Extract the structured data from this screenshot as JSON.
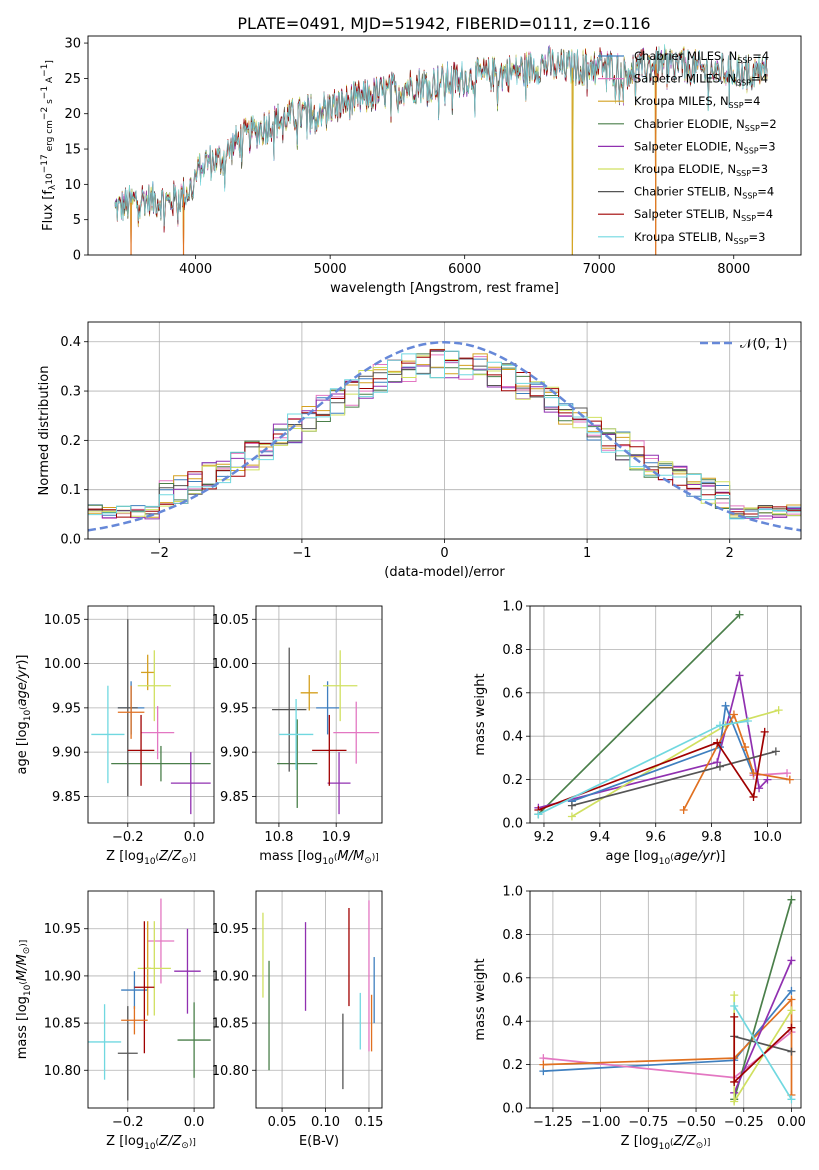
{
  "title": "PLATE=0491, MJD=51942, FIBERID=0111, z=0.116",
  "colors": {
    "chabrier_miles": "#3f7fbf",
    "salpeter_miles": "#e377c2",
    "kroupa_miles": "#d4a020",
    "chabrier_elodie": "#4a7f4a",
    "salpeter_elodie": "#9030b0",
    "kroupa_elodie": "#d0e060",
    "chabrier_stelib": "#555555",
    "salpeter_stelib": "#a00000",
    "kroupa_stelib": "#70d8e0",
    "orange": "#e07020",
    "blue": "#5577dd",
    "normal_curve": "#6688d8",
    "grid": "#b0b0b0"
  },
  "chart_data": [
    {
      "id": "spectrum",
      "type": "line",
      "title": "PLATE=0491, MJD=51942, FIBERID=0111, z=0.116",
      "xlabel": "wavelength [Angstrom, rest frame]",
      "ylabel": "Flux [f_λ 10^-17 erg cm^-2 s^-1 A^-1]",
      "xlim": [
        3200,
        8500
      ],
      "ylim": [
        0,
        31
      ],
      "xticks": [
        "4000",
        "5000",
        "6000",
        "7000",
        "8000"
      ],
      "yticks": [
        "0",
        "5",
        "10",
        "15",
        "20",
        "25",
        "30"
      ],
      "legend_position": "upper-right",
      "series": [
        {
          "name": "Chabrier MILES, N_SSP=4"
        },
        {
          "name": "Salpeter MILES, N_SSP=4"
        },
        {
          "name": "Kroupa MILES, N_SSP=4"
        },
        {
          "name": "Chabrier ELODIE, N_SSP=2"
        },
        {
          "name": "Salpeter ELODIE, N_SSP=3"
        },
        {
          "name": "Kroupa ELODIE, N_SSP=3"
        },
        {
          "name": "Chabrier STELIB, N_SSP=4"
        },
        {
          "name": "Salpeter STELIB, N_SSP=4"
        },
        {
          "name": "Kroupa STELIB, N_SSP=3"
        }
      ],
      "continuum_points": [
        [
          3400,
          6.5
        ],
        [
          3600,
          8
        ],
        [
          3800,
          7.5
        ],
        [
          3950,
          9
        ],
        [
          4050,
          13
        ],
        [
          4200,
          13.5
        ],
        [
          4300,
          16
        ],
        [
          4400,
          17
        ],
        [
          4600,
          19
        ],
        [
          4800,
          20
        ],
        [
          5000,
          21
        ],
        [
          5200,
          22
        ],
        [
          5400,
          23
        ],
        [
          5600,
          24
        ],
        [
          5800,
          24.5
        ],
        [
          6000,
          25
        ],
        [
          6200,
          25.5
        ],
        [
          6400,
          26
        ],
        [
          6600,
          27
        ],
        [
          6800,
          26.5
        ],
        [
          7000,
          27
        ],
        [
          7200,
          26
        ],
        [
          7400,
          27
        ],
        [
          7600,
          27
        ],
        [
          7800,
          26
        ],
        [
          8000,
          26
        ],
        [
          8250,
          26
        ]
      ],
      "drops": [
        3520,
        3910,
        6800,
        7420
      ]
    },
    {
      "id": "residuals",
      "type": "histogram",
      "xlabel": "(data-model)/error",
      "ylabel": "Normed distribution",
      "xlim": [
        -2.5,
        2.5
      ],
      "ylim": [
        0,
        0.44
      ],
      "xticks": [
        "−2",
        "−1",
        "0",
        "1",
        "2"
      ],
      "yticks": [
        "0.0",
        "0.1",
        "0.2",
        "0.3",
        "0.4"
      ],
      "legend": "𝒩(0, 1)",
      "legend_position": "upper-right",
      "bins": 50,
      "n_series": 9
    },
    {
      "id": "age_vs_Z",
      "type": "errorbar",
      "xlabel": "Z [log10(Z/Z⊙)]",
      "ylabel": "age [log10(age/yr)]",
      "xlim": [
        -0.32,
        0.06
      ],
      "ylim": [
        9.82,
        10.065
      ],
      "xticks": [
        "−0.2",
        "0.0"
      ],
      "yticks": [
        "9.85",
        "9.90",
        "9.95",
        "10.00",
        "10.05"
      ],
      "points": [
        {
          "s": "chabrier_miles",
          "x": -0.19,
          "xerr": 0.04,
          "y": 9.95,
          "yerr": 0.03
        },
        {
          "s": "salpeter_miles",
          "x": -0.11,
          "xerr": 0.05,
          "y": 9.922,
          "yerr": 0.03
        },
        {
          "s": "kroupa_miles",
          "x": -0.14,
          "xerr": 0.02,
          "y": 9.99,
          "yerr": 0.02
        },
        {
          "s": "chabrier_elodie",
          "x": -0.1,
          "xerr": 0.15,
          "y": 9.887,
          "yerr": 0.02
        },
        {
          "s": "salpeter_elodie",
          "x": -0.01,
          "xerr": 0.06,
          "y": 9.865,
          "yerr": 0.035
        },
        {
          "s": "kroupa_elodie",
          "x": -0.12,
          "xerr": 0.05,
          "y": 9.975,
          "yerr": 0.04
        },
        {
          "s": "chabrier_stelib",
          "x": -0.2,
          "xerr": 0.03,
          "y": 9.95,
          "yerr": 0.1
        },
        {
          "s": "salpeter_stelib",
          "x": -0.16,
          "xerr": 0.04,
          "y": 9.902,
          "yerr": 0.04
        },
        {
          "s": "kroupa_stelib",
          "x": -0.26,
          "xerr": 0.05,
          "y": 9.92,
          "yerr": 0.055
        },
        {
          "s": "orange",
          "x": -0.19,
          "xerr": 0.04,
          "y": 9.945,
          "yerr": 0.03
        }
      ]
    },
    {
      "id": "age_vs_mass",
      "type": "errorbar",
      "xlabel": "mass [log10(M/M⊙)]",
      "ylabel": "",
      "xlim": [
        10.76,
        10.98
      ],
      "ylim": [
        9.82,
        10.065
      ],
      "xticks": [
        "10.8",
        "10.9"
      ],
      "yticks": [
        "9.85",
        "9.90",
        "9.95",
        "10.00",
        "10.05"
      ],
      "points": [
        {
          "s": "chabrier_miles",
          "x": 10.885,
          "xerr": 0.02,
          "y": 9.95,
          "yerr": 0.03
        },
        {
          "s": "salpeter_miles",
          "x": 10.935,
          "xerr": 0.04,
          "y": 9.922,
          "yerr": 0.035
        },
        {
          "s": "kroupa_miles",
          "x": 10.853,
          "xerr": 0.015,
          "y": 9.967,
          "yerr": 0.02
        },
        {
          "s": "chabrier_elodie",
          "x": 10.832,
          "xerr": 0.035,
          "y": 9.887,
          "yerr": 0.05
        },
        {
          "s": "salpeter_elodie",
          "x": 10.905,
          "xerr": 0.02,
          "y": 9.865,
          "yerr": 0.035
        },
        {
          "s": "kroupa_elodie",
          "x": 10.907,
          "xerr": 0.03,
          "y": 9.975,
          "yerr": 0.04
        },
        {
          "s": "chabrier_stelib",
          "x": 10.818,
          "xerr": 0.03,
          "y": 9.948,
          "yerr": 0.07
        },
        {
          "s": "salpeter_stelib",
          "x": 10.888,
          "xerr": 0.03,
          "y": 9.902,
          "yerr": 0.04
        },
        {
          "s": "kroupa_stelib",
          "x": 10.83,
          "xerr": 0.03,
          "y": 9.92,
          "yerr": 0.04
        }
      ]
    },
    {
      "id": "mass_weight_vs_age",
      "type": "line",
      "xlabel": "age [log10(age/yr)]",
      "ylabel": "mass weight",
      "xlim": [
        9.15,
        10.12
      ],
      "ylim": [
        0,
        1.0
      ],
      "xticks": [
        "9.2",
        "9.4",
        "9.6",
        "9.8",
        "10.0"
      ],
      "yticks": [
        "0.0",
        "0.2",
        "0.4",
        "0.6",
        "0.8",
        "1.0"
      ],
      "series": [
        {
          "s": "chabrier_elodie",
          "x": [
            9.18,
            9.9
          ],
          "y": [
            0.04,
            0.96
          ]
        },
        {
          "s": "salpeter_elodie",
          "x": [
            9.18,
            9.82,
            9.9,
            9.97,
            10.0
          ],
          "y": [
            0.07,
            0.28,
            0.68,
            0.16,
            0.2
          ]
        },
        {
          "s": "kroupa_elodie",
          "x": [
            9.3,
            9.85,
            10.04
          ],
          "y": [
            0.03,
            0.45,
            0.52
          ]
        },
        {
          "s": "chabrier_miles",
          "x": [
            9.3,
            9.83,
            9.85,
            9.95
          ],
          "y": [
            0.1,
            0.35,
            0.54,
            0.22
          ]
        },
        {
          "s": "salpeter_miles",
          "x": [
            9.95,
            10.07
          ],
          "y": [
            0.22,
            0.23
          ]
        },
        {
          "s": "orange",
          "x": [
            9.7,
            9.88,
            9.92,
            9.95,
            10.08
          ],
          "y": [
            0.06,
            0.5,
            0.35,
            0.23,
            0.2
          ]
        },
        {
          "s": "chabrier_stelib",
          "x": [
            9.3,
            9.83,
            10.03
          ],
          "y": [
            0.08,
            0.26,
            0.33
          ]
        },
        {
          "s": "salpeter_stelib",
          "x": [
            9.18,
            9.82,
            9.95,
            9.99
          ],
          "y": [
            0.06,
            0.37,
            0.12,
            0.42
          ]
        },
        {
          "s": "kroupa_stelib",
          "x": [
            9.18,
            9.83,
            9.93
          ],
          "y": [
            0.04,
            0.45,
            0.47
          ]
        }
      ]
    },
    {
      "id": "mass_vs_Z",
      "type": "errorbar",
      "xlabel": "Z [log10(Z/Z⊙)]",
      "ylabel": "mass [log10(M/M⊙)]",
      "xlim": [
        -0.32,
        0.06
      ],
      "ylim": [
        10.76,
        10.99
      ],
      "xticks": [
        "−0.2",
        "0.0"
      ],
      "yticks": [
        "10.80",
        "10.85",
        "10.90",
        "10.95"
      ],
      "points": [
        {
          "s": "chabrier_miles",
          "x": -0.18,
          "xerr": 0.04,
          "y": 10.885,
          "yerr": 0.02
        },
        {
          "s": "salpeter_miles",
          "x": -0.1,
          "xerr": 0.04,
          "y": 10.937,
          "yerr": 0.045
        },
        {
          "s": "kroupa_miles",
          "x": -0.14,
          "xerr": 0.01,
          "y": 10.908,
          "yerr": 0.05
        },
        {
          "s": "chabrier_elodie",
          "x": -0.0,
          "xerr": 0.05,
          "y": 10.832,
          "yerr": 0.04
        },
        {
          "s": "salpeter_elodie",
          "x": -0.02,
          "xerr": 0.04,
          "y": 10.905,
          "yerr": 0.045
        },
        {
          "s": "kroupa_elodie",
          "x": -0.12,
          "xerr": 0.05,
          "y": 10.908,
          "yerr": 0.05
        },
        {
          "s": "chabrier_stelib",
          "x": -0.2,
          "xerr": 0.03,
          "y": 10.818,
          "yerr": 0.05
        },
        {
          "s": "salpeter_stelib",
          "x": -0.15,
          "xerr": 0.03,
          "y": 10.888,
          "yerr": 0.07
        },
        {
          "s": "kroupa_stelib",
          "x": -0.27,
          "xerr": 0.05,
          "y": 10.83,
          "yerr": 0.04
        },
        {
          "s": "orange",
          "x": -0.18,
          "xerr": 0.04,
          "y": 10.853,
          "yerr": 0.015
        }
      ]
    },
    {
      "id": "mass_vs_ebv",
      "type": "errorbar",
      "xlabel": "E(B-V)",
      "ylabel": "",
      "xlim": [
        0.02,
        0.165
      ],
      "ylim": [
        10.76,
        10.99
      ],
      "xticks": [
        "0.05",
        "0.10",
        "0.15"
      ],
      "yticks": [
        "10.80",
        "10.85",
        "10.90",
        "10.95"
      ],
      "points": [
        {
          "s": "kroupa_elodie",
          "x": 0.028,
          "y": 10.922,
          "yerr": 0.045
        },
        {
          "s": "chabrier_elodie",
          "x": 0.035,
          "y": 10.858,
          "yerr": 0.058
        },
        {
          "s": "salpeter_elodie",
          "x": 0.077,
          "y": 10.91,
          "yerr": 0.047
        },
        {
          "s": "chabrier_stelib",
          "x": 0.12,
          "y": 10.82,
          "yerr": 0.04
        },
        {
          "s": "salpeter_stelib",
          "x": 0.127,
          "y": 10.92,
          "yerr": 0.052
        },
        {
          "s": "kroupa_stelib",
          "x": 0.14,
          "y": 10.852,
          "yerr": 0.03
        },
        {
          "s": "salpeter_miles",
          "x": 0.15,
          "y": 10.9,
          "yerr": 0.08
        },
        {
          "s": "orange",
          "x": 0.153,
          "y": 10.85,
          "yerr": 0.03
        },
        {
          "s": "chabrier_miles",
          "x": 0.156,
          "y": 10.885,
          "yerr": 0.035
        }
      ]
    },
    {
      "id": "mass_weight_vs_Z",
      "type": "line",
      "xlabel": "Z [log10(Z/Z⊙)]",
      "ylabel": "mass weight",
      "xlim": [
        -1.37,
        0.05
      ],
      "ylim": [
        0,
        1.0
      ],
      "xticks": [
        "−1.25",
        "−1.00",
        "−0.75",
        "−0.50",
        "−0.25",
        "0.00"
      ],
      "yticks": [
        "0.0",
        "0.2",
        "0.4",
        "0.6",
        "0.8",
        "1.0"
      ],
      "series": [
        {
          "s": "chabrier_miles",
          "x": [
            -1.3,
            -0.3,
            0.0
          ],
          "y": [
            0.17,
            0.22,
            0.54
          ]
        },
        {
          "s": "salpeter_miles",
          "x": [
            -1.3,
            -0.3,
            0.0
          ],
          "y": [
            0.23,
            0.14,
            0.35
          ]
        },
        {
          "s": "orange",
          "x": [
            -1.3,
            -0.3,
            0.0,
            0.0
          ],
          "y": [
            0.2,
            0.23,
            0.5,
            0.06
          ]
        },
        {
          "s": "chabrier_elodie",
          "x": [
            -0.3,
            0.0
          ],
          "y": [
            0.04,
            0.96
          ]
        },
        {
          "s": "salpeter_elodie",
          "x": [
            -0.3,
            0.0
          ],
          "y": [
            0.07,
            0.68
          ]
        },
        {
          "s": "kroupa_elodie",
          "x": [
            -0.3,
            -0.3,
            0.0
          ],
          "y": [
            0.52,
            0.03,
            0.45
          ]
        },
        {
          "s": "chabrier_stelib",
          "x": [
            -0.3,
            0.0
          ],
          "y": [
            0.33,
            0.26
          ]
        },
        {
          "s": "salpeter_stelib",
          "x": [
            -0.3,
            -0.3,
            0.0
          ],
          "y": [
            0.42,
            0.12,
            0.37
          ]
        },
        {
          "s": "kroupa_stelib",
          "x": [
            -0.3,
            0.0
          ],
          "y": [
            0.47,
            0.04
          ]
        }
      ]
    }
  ]
}
